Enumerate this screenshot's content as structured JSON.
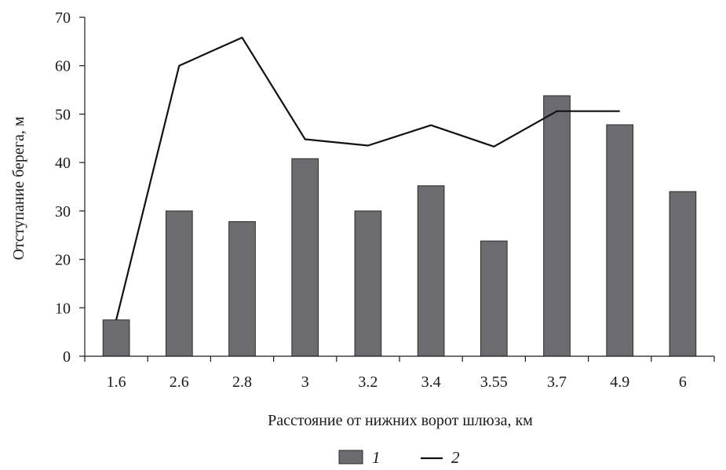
{
  "chart_data": {
    "type": "bar",
    "categories": [
      "1.6",
      "2.6",
      "2.8",
      "3",
      "3.2",
      "3.4",
      "3.55",
      "3.7",
      "4.9",
      "6"
    ],
    "series": [
      {
        "name": "1",
        "type": "bar",
        "values": [
          7.5,
          30,
          27.8,
          40.8,
          30,
          35.2,
          23.8,
          53.8,
          47.8,
          34
        ]
      },
      {
        "name": "2",
        "type": "line",
        "values": [
          7.5,
          60,
          65.8,
          44.8,
          43.5,
          47.7,
          43.3,
          50.6,
          50.6,
          null
        ]
      }
    ],
    "xlabel": "Расстояние от нижних ворот шлюза, км",
    "ylabel": "Отступание берега, м",
    "ylim": [
      0,
      70
    ],
    "yticks": [
      "0",
      "10",
      "20",
      "30",
      "40",
      "50",
      "60",
      "70"
    ],
    "grid": false,
    "legend_position": "bottom-center",
    "colors": {
      "bar": "#6c6c70",
      "line": "#111111"
    }
  }
}
